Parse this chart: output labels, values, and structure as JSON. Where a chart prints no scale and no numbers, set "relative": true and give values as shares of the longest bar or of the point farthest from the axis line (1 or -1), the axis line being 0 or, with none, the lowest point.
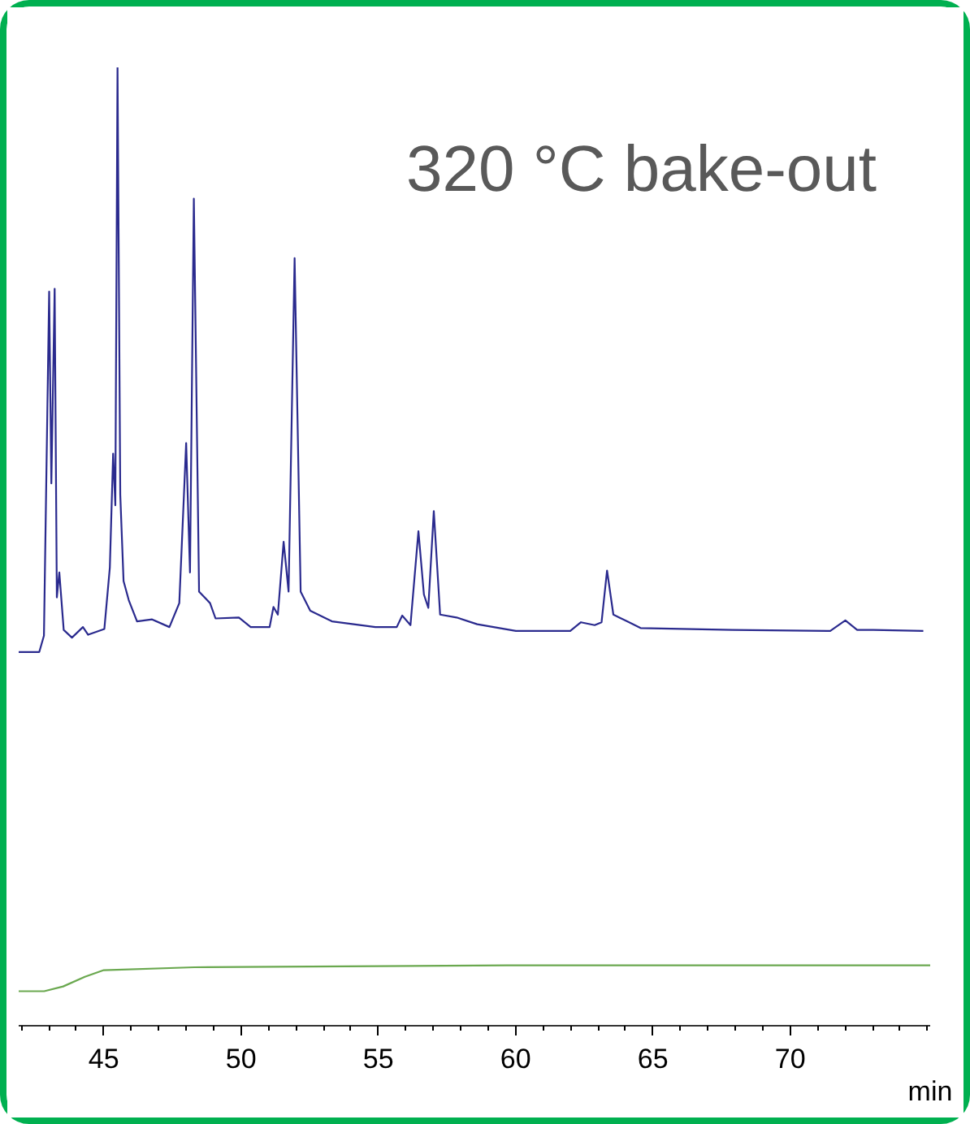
{
  "chart_data": {
    "type": "line",
    "title": "320 °C bake-out",
    "xlabel": "min",
    "relative": true,
    "xlim": [
      41.9,
      75.1
    ],
    "xticks": [
      45,
      50,
      55,
      60,
      65,
      70
    ],
    "grid": false,
    "marker": "none",
    "line_style": "solid",
    "series": [
      {
        "color": "#2a2a8e",
        "x": [
          41.9,
          42.65,
          42.82,
          43.01,
          43.09,
          43.21,
          43.29,
          43.38,
          43.54,
          43.84,
          44.24,
          44.43,
          45.02,
          45.22,
          45.34,
          45.42,
          45.5,
          45.6,
          45.72,
          45.91,
          46.21,
          46.76,
          47.39,
          47.75,
          48.0,
          48.14,
          48.28,
          48.47,
          48.87,
          49.07,
          49.92,
          50.35,
          51.04,
          51.18,
          51.34,
          51.55,
          51.73,
          51.95,
          52.17,
          52.52,
          53.31,
          54.89,
          55.67,
          55.87,
          56.17,
          56.46,
          56.66,
          56.82,
          57.02,
          57.25,
          57.85,
          58.6,
          60.01,
          61.99,
          62.38,
          62.88,
          63.13,
          63.33,
          63.56,
          64.06,
          64.55,
          67.9,
          71.46,
          72.01,
          72.44,
          73.03,
          74.85
        ],
        "values": [
          0.39,
          0.39,
          0.407,
          0.766,
          0.566,
          0.769,
          0.447,
          0.473,
          0.413,
          0.405,
          0.416,
          0.408,
          0.414,
          0.478,
          0.597,
          0.543,
          1.0,
          0.554,
          0.464,
          0.444,
          0.422,
          0.424,
          0.416,
          0.441,
          0.608,
          0.473,
          0.863,
          0.453,
          0.441,
          0.425,
          0.426,
          0.416,
          0.416,
          0.437,
          0.429,
          0.505,
          0.453,
          0.801,
          0.453,
          0.433,
          0.422,
          0.416,
          0.416,
          0.428,
          0.418,
          0.516,
          0.45,
          0.436,
          0.537,
          0.429,
          0.426,
          0.419,
          0.412,
          0.412,
          0.421,
          0.418,
          0.421,
          0.475,
          0.429,
          0.422,
          0.415,
          0.413,
          0.412,
          0.423,
          0.413,
          0.413,
          0.412
        ]
      },
      {
        "color": "#6aa84f",
        "x": [
          41.9,
          42.83,
          43.52,
          44.31,
          45.0,
          48.3,
          59.68,
          75.1
        ],
        "values": [
          0.036,
          0.036,
          0.041,
          0.051,
          0.058,
          0.061,
          0.063,
          0.063
        ]
      }
    ]
  }
}
